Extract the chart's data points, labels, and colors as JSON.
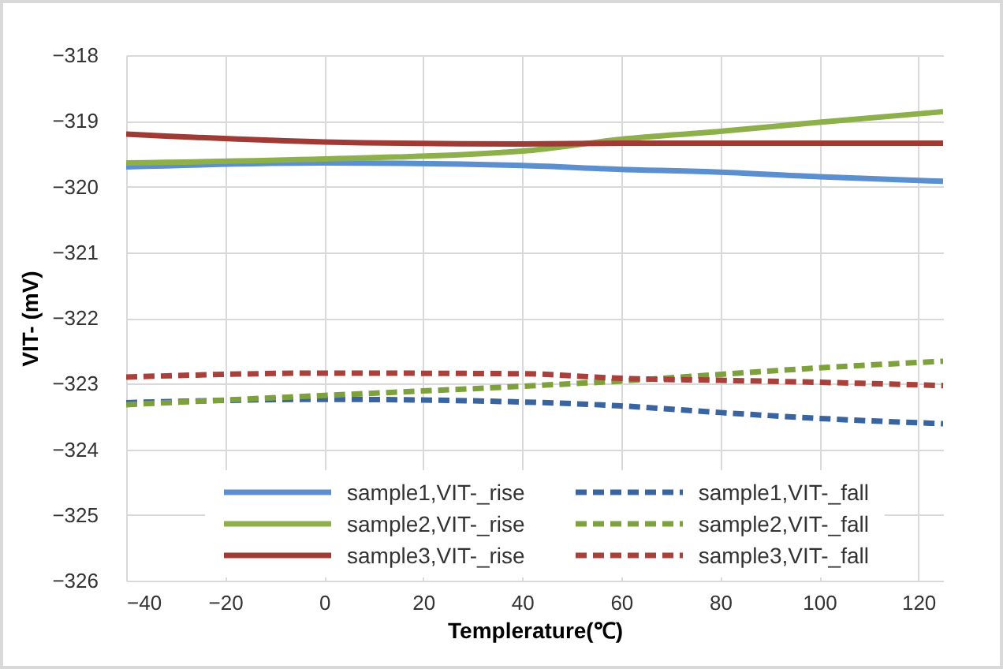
{
  "chart_data": {
    "type": "line",
    "xlabel": "Templerature(℃)",
    "ylabel": "VIT-   (mV)",
    "xlim": [
      -40,
      125
    ],
    "xticks": [
      -40,
      -20,
      0,
      20,
      40,
      60,
      80,
      100,
      120
    ],
    "ylim": [
      -326,
      -318
    ],
    "yticks": [
      -326,
      -325,
      -324,
      -323,
      -322,
      -321,
      -320,
      -319,
      -318
    ],
    "grid": true,
    "legend": "bottom",
    "x": [
      -40,
      0,
      40,
      60,
      80,
      100,
      125
    ],
    "series": [
      {
        "name": "sample1,VIT-_rise",
        "color": "#5b8fd0",
        "line_style": "solid",
        "values": [
          -319.7,
          -319.64,
          -319.68,
          -319.74,
          -319.78,
          -319.85,
          -319.92
        ]
      },
      {
        "name": "sample1,VIT-_fall",
        "color": "#3a64a0",
        "line_style": "dashed",
        "values": [
          -323.29,
          -323.24,
          -323.28,
          -323.34,
          -323.44,
          -323.53,
          -323.61
        ]
      },
      {
        "name": "sample2,VIT-_rise",
        "color": "#8db04a",
        "line_style": "solid",
        "values": [
          -319.64,
          -319.58,
          -319.46,
          -319.28,
          -319.16,
          -319.02,
          -318.86
        ]
      },
      {
        "name": "sample2,VIT-_fall",
        "color": "#7ea13e",
        "line_style": "dashed",
        "values": [
          -323.32,
          -323.18,
          -323.04,
          -322.96,
          -322.86,
          -322.76,
          -322.66
        ]
      },
      {
        "name": "sample3,VIT-_rise",
        "color": "#a03a35",
        "line_style": "solid",
        "values": [
          -319.2,
          -319.32,
          -319.35,
          -319.34,
          -319.34,
          -319.34,
          -319.34
        ]
      },
      {
        "name": "sample3,VIT-_fall",
        "color": "#a8403b",
        "line_style": "dashed",
        "values": [
          -322.9,
          -322.84,
          -322.85,
          -322.92,
          -322.95,
          -322.98,
          -323.03
        ]
      }
    ]
  }
}
